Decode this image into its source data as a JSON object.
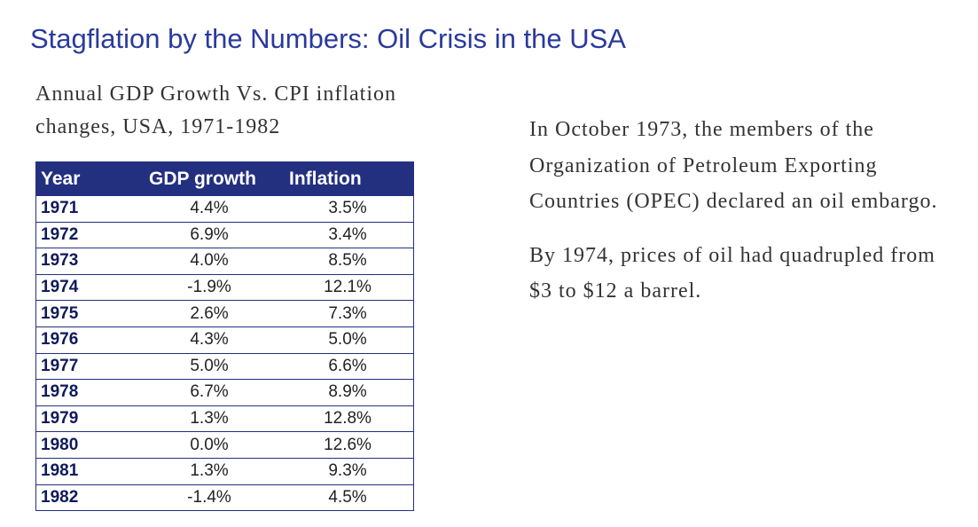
{
  "title": "Stagflation by the Numbers: Oil Crisis in the USA",
  "caption": {
    "line1": "Annual GDP Growth Vs. CPI inflation",
    "line2": "changes, USA, 1971-1982"
  },
  "table": {
    "headers": [
      "Year",
      "GDP growth",
      "Inflation"
    ],
    "rows": [
      {
        "year": "1971",
        "gdp": "4.4%",
        "inflation": "3.5%"
      },
      {
        "year": "1972",
        "gdp": "6.9%",
        "inflation": "3.4%"
      },
      {
        "year": "1973",
        "gdp": "4.0%",
        "inflation": "8.5%"
      },
      {
        "year": "1974",
        "gdp": "-1.9%",
        "inflation": "12.1%"
      },
      {
        "year": "1975",
        "gdp": "2.6%",
        "inflation": "7.3%"
      },
      {
        "year": "1976",
        "gdp": "4.3%",
        "inflation": "5.0%"
      },
      {
        "year": "1977",
        "gdp": "5.0%",
        "inflation": "6.6%"
      },
      {
        "year": "1978",
        "gdp": "6.7%",
        "inflation": "8.9%"
      },
      {
        "year": "1979",
        "gdp": "1.3%",
        "inflation": "12.8%"
      },
      {
        "year": "1980",
        "gdp": "0.0%",
        "inflation": "12.6%"
      },
      {
        "year": "1981",
        "gdp": "1.3%",
        "inflation": "9.3%"
      },
      {
        "year": "1982",
        "gdp": "-1.4%",
        "inflation": "4.5%"
      }
    ]
  },
  "side_text": {
    "paragraph1": "In October 1973, the members of the Organization of Petroleum Exporting Countries (OPEC) declared an oil embargo.",
    "paragraph2": "By 1974, prices of oil had quadrupled from $3 to $12 a barrel."
  },
  "colors": {
    "title": "#2a3a9c",
    "table_header_bg": "#233080",
    "table_header_text": "#ffffff"
  }
}
